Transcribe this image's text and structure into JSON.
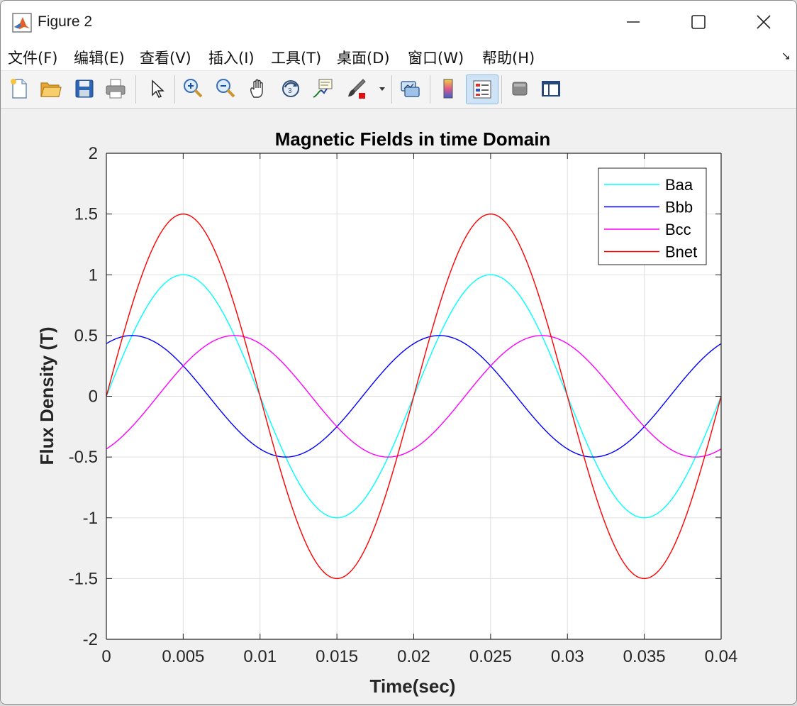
{
  "window": {
    "title": "Figure 2"
  },
  "menu": {
    "items": [
      {
        "label": "文件(F)"
      },
      {
        "label": "编辑(E)"
      },
      {
        "label": "查看(V)"
      },
      {
        "label": "插入(I)"
      },
      {
        "label": "工具(T)"
      },
      {
        "label": "桌面(D)"
      },
      {
        "label": "窗口(W)"
      },
      {
        "label": "帮助(H)"
      }
    ]
  },
  "toolbar": {
    "icons": [
      "new-figure-icon",
      "open-file-icon",
      "save-icon",
      "print-icon",
      "select-arrow-icon",
      "zoom-in-icon",
      "zoom-out-icon",
      "pan-hand-icon",
      "rotate-3d-icon",
      "data-cursor-icon",
      "brush-icon",
      "link-plot-icon",
      "colorbar-icon",
      "legend-icon",
      "hide-plot-tools-icon",
      "show-plot-tools-icon"
    ]
  },
  "chart_data": {
    "type": "line",
    "title": "Magnetic Fields in time Domain",
    "xlabel": "Time(sec)",
    "ylabel": "Flux Density (T)",
    "xlim": [
      0,
      0.04
    ],
    "ylim": [
      -2,
      2
    ],
    "xticks": [
      0,
      0.005,
      0.01,
      0.015,
      0.02,
      0.025,
      0.03,
      0.035,
      0.04
    ],
    "xtick_labels": [
      "0",
      "0.005",
      "0.01",
      "0.015",
      "0.02",
      "0.025",
      "0.03",
      "0.035",
      "0.04"
    ],
    "yticks": [
      2,
      1.5,
      1,
      0.5,
      0,
      -0.5,
      -1,
      -1.5,
      -2
    ],
    "ytick_labels": [
      "2",
      "1.5",
      "1",
      "0.5",
      "0",
      "-0.5",
      "-1",
      "-1.5",
      "-2"
    ],
    "grid": true,
    "legend_position": "top-right",
    "series": [
      {
        "name": "Baa",
        "color": "#00ffff",
        "amplitude": 1.0,
        "frequency_hz": 50,
        "phase_deg": 0
      },
      {
        "name": "Bbb",
        "color": "#0000ff",
        "amplitude": 0.5,
        "frequency_hz": 50,
        "phase_deg": 60
      },
      {
        "name": "Bcc",
        "color": "#ff00ff",
        "amplitude": 0.5,
        "frequency_hz": 50,
        "phase_deg": -60
      },
      {
        "name": "Bnet",
        "color": "#ff0000",
        "amplitude": 1.5,
        "frequency_hz": 50,
        "phase_deg": 0
      }
    ]
  }
}
